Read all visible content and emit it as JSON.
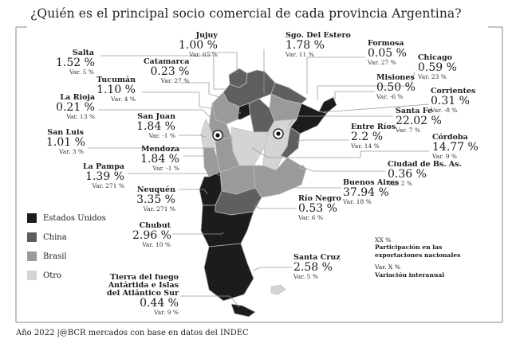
{
  "title": "¿Quién es el principal socio comercial de cada provincia Argentina?",
  "colors": {
    "estados_unidos": "#1c1c1c",
    "china": "#5f5f5f",
    "brasil": "#9a9a9a",
    "otro": "#d4d4d4",
    "border": "#bdbdbd",
    "lines": "#9a9a9a"
  },
  "legend": [
    {
      "label": "Estados Unidos",
      "color": "#1c1c1c"
    },
    {
      "label": "China",
      "color": "#5f5f5f"
    },
    {
      "label": "Brasil",
      "color": "#9a9a9a"
    },
    {
      "label": "Otro",
      "color": "#d4d4d4"
    }
  ],
  "provinces": {
    "jujuy": {
      "name": "Jujuy",
      "pct": "1.00 %",
      "var": "Var. 65 %",
      "partner": "china"
    },
    "salta": {
      "name": "Salta",
      "pct": "1.52 %",
      "var": "Var. 5 %",
      "partner": "china"
    },
    "catamarca": {
      "name": "Catamarca",
      "pct": "0.23 %",
      "var": "Var. 27 %",
      "partner": "brasil"
    },
    "sgo_del_estero": {
      "name": "Sgo. Del Estero",
      "pct": "1.78 %",
      "var": "Var. 11 %",
      "partner": "china"
    },
    "formosa": {
      "name": "Formosa",
      "pct": "0.05 %",
      "var": "Var. 27 %",
      "partner": "china"
    },
    "chicago": {
      "name": "Chicago",
      "pct": "0.59 %",
      "var": "Var. 23 %",
      "partner": "brasil"
    },
    "tucuman": {
      "name": "Tucumán",
      "pct": "1.10 %",
      "var": "Var. 4 %",
      "partner": "estados_unidos"
    },
    "misiones": {
      "name": "Misiones",
      "pct": "0.50 %",
      "var": "Var. -6 %",
      "partner": "estados_unidos"
    },
    "corrientes": {
      "name": "Corrientes",
      "pct": "0.31 %",
      "var": "Var. -8 %",
      "partner": "estados_unidos"
    },
    "la_rioja": {
      "name": "La Rioja",
      "pct": "0.21 %",
      "var": "Var. 13 %",
      "partner": "brasil"
    },
    "santa_fe": {
      "name": "Santa Fe",
      "pct": "22.02 %",
      "var": "Var. 7 %",
      "partner": "otro"
    },
    "san_juan": {
      "name": "San Juan",
      "pct": "1.84 %",
      "var": "Var. -1 %",
      "partner": "otro"
    },
    "san_luis": {
      "name": "San Luis",
      "pct": "1.01 %",
      "var": "Var. 3 %",
      "partner": "brasil"
    },
    "entre_rios": {
      "name": "Entre Ríos",
      "pct": "2.2 %",
      "var": "Var. 14 %",
      "partner": "china"
    },
    "cordoba": {
      "name": "Córdoba",
      "pct": "14.77 %",
      "var": "Var. 9 %",
      "partner": "otro"
    },
    "mendoza": {
      "name": "Mendoza",
      "pct": "1.84 %",
      "var": "Var. -1 %",
      "partner": "brasil"
    },
    "caba": {
      "name": "Ciudad de Bs. As.",
      "pct": "0.36 %",
      "var": "Var. 2 %",
      "partner": "brasil"
    },
    "la_pampa": {
      "name": "La Pampa",
      "pct": "1.39 %",
      "var": "Var. 271 %",
      "partner": "brasil"
    },
    "buenos_aires": {
      "name": "Buenos Aires",
      "pct": "37.94 %",
      "var": "Var. 18 %",
      "partner": "brasil"
    },
    "neuquen": {
      "name": "Neuquén",
      "pct": "3.35 %",
      "var": "Var. 271 %",
      "partner": "estados_unidos"
    },
    "rio_negro": {
      "name": "Río Negro",
      "pct": "0.53 %",
      "var": "Var. 6 %",
      "partner": "china"
    },
    "chubut": {
      "name": "Chubut",
      "pct": "2.96 %",
      "var": "Var. 10 %",
      "partner": "estados_unidos"
    },
    "santa_cruz": {
      "name": "Santa Cruz",
      "pct": "2.58 %",
      "var": "Var. 5 %",
      "partner": "estados_unidos"
    },
    "tierra_del_fuego": {
      "name_l1": "Tierra del fuego",
      "name_l2": "Antártida e Islas",
      "name_l3": "del Atlántico Sur",
      "pct": "0.44 %",
      "var": "Var. 9 %",
      "partner": "estados_unidos"
    }
  },
  "notes": {
    "l1": "XX %",
    "l2": "Participación en las",
    "l3": "exportaciones nacionales",
    "l4": "Var. X %",
    "l5": "Variación interanual"
  },
  "footer": "Año 2022  |@BCR mercados con base en datos del INDEC"
}
